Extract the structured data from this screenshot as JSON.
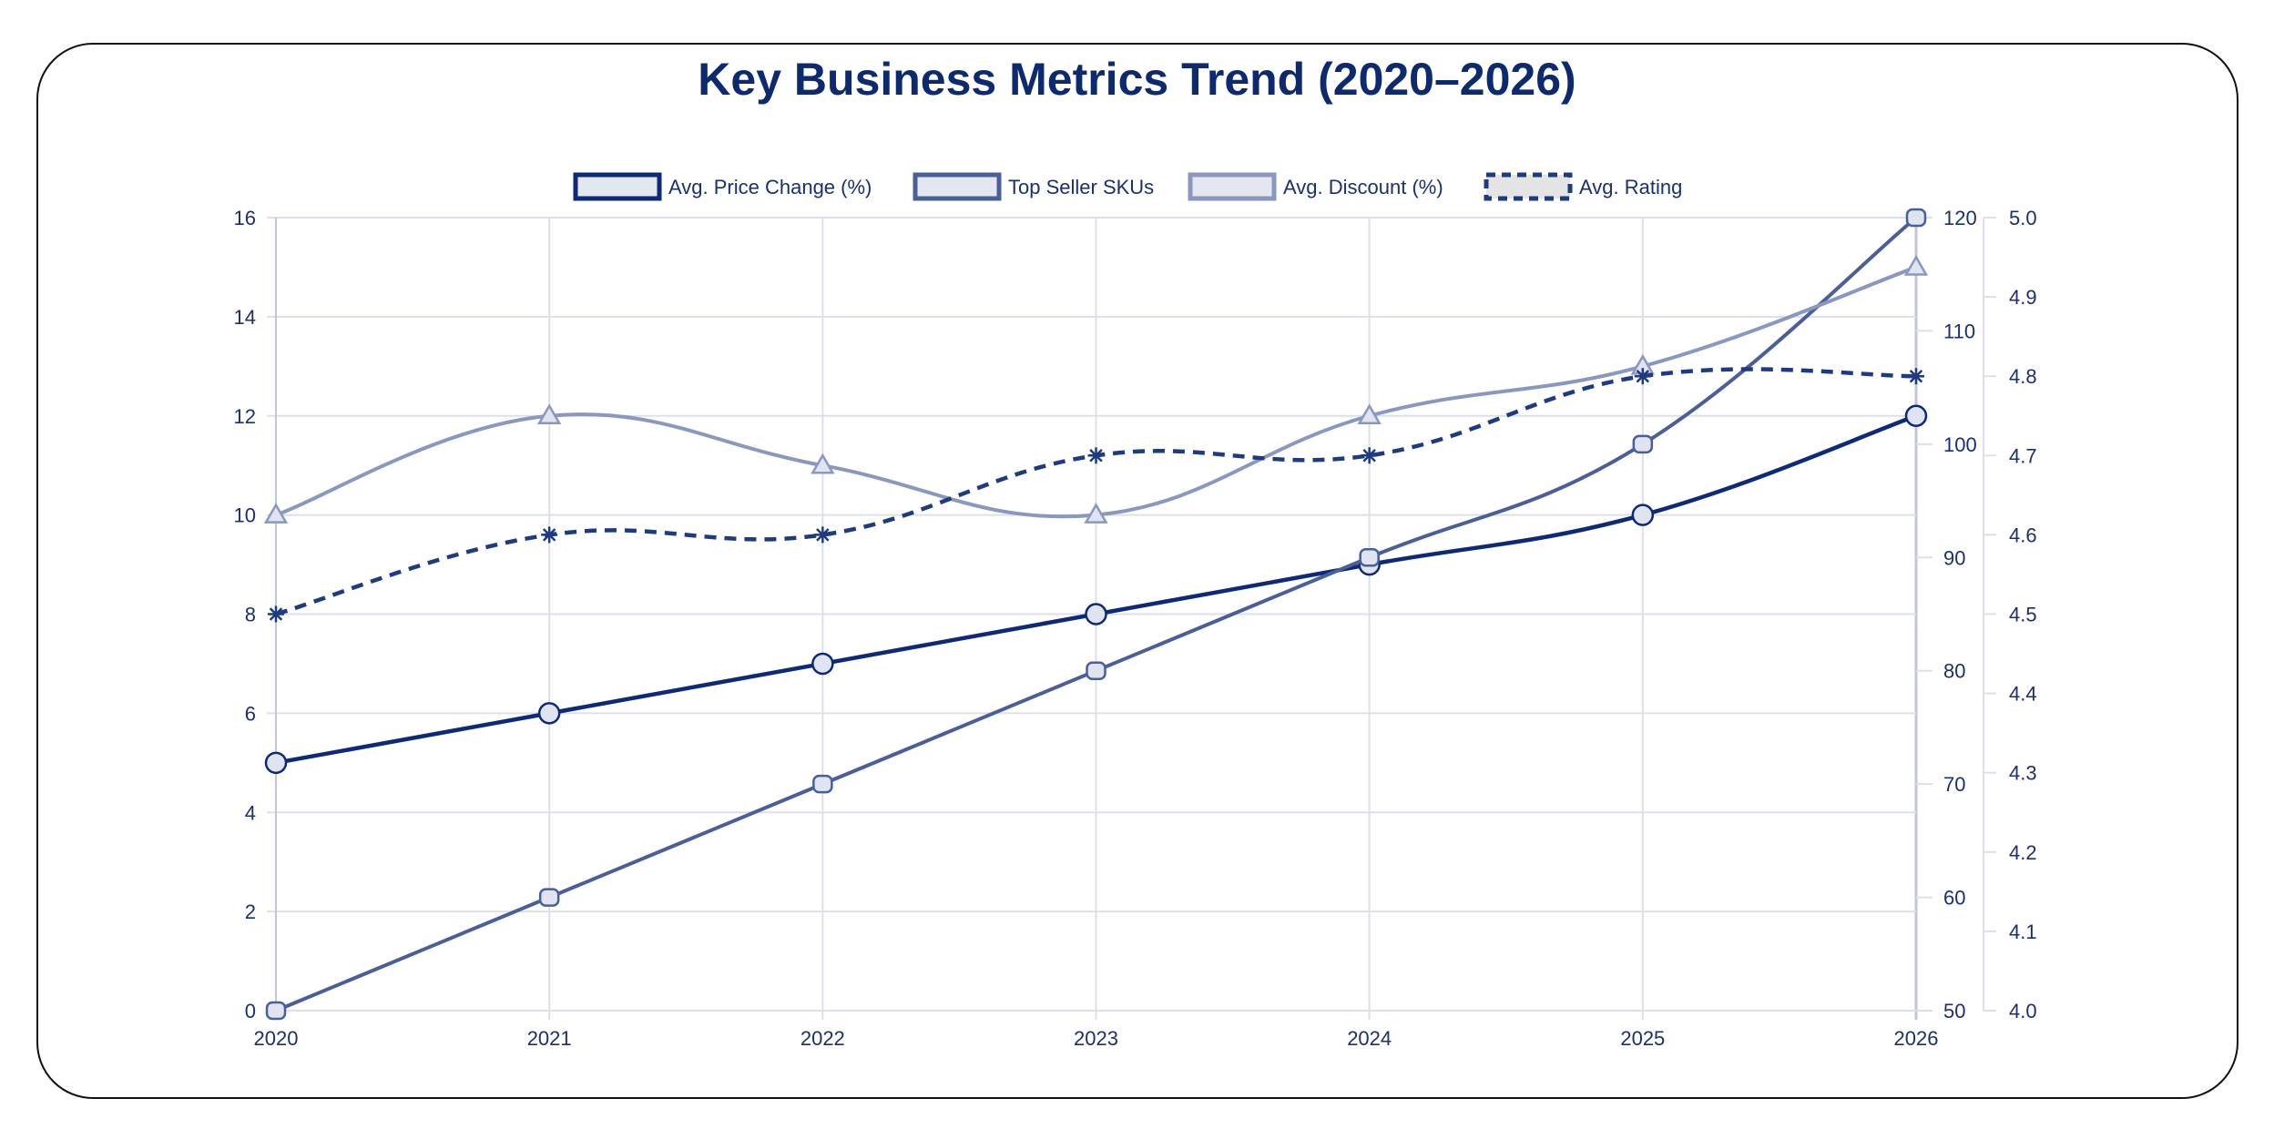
{
  "chart_data": {
    "type": "line",
    "title": "Key Business Metrics Trend (2020–2026)",
    "categories": [
      "2020",
      "2021",
      "2022",
      "2023",
      "2024",
      "2025",
      "2026"
    ],
    "axes": {
      "y_left": {
        "range": [
          0,
          16
        ],
        "ticks": [
          0,
          2,
          4,
          6,
          8,
          10,
          12,
          14,
          16
        ]
      },
      "y_right1": {
        "range": [
          50,
          120
        ],
        "ticks": [
          50,
          60,
          70,
          80,
          90,
          100,
          110,
          120
        ]
      },
      "y_right2": {
        "range": [
          4.0,
          5.0
        ],
        "ticks": [
          "4.0",
          "4.1",
          "4.2",
          "4.3",
          "4.4",
          "4.5",
          "4.6",
          "4.7",
          "4.8",
          "4.9",
          "5.0"
        ]
      }
    },
    "grid": true,
    "legend_placement": "top",
    "series": [
      {
        "name": "Avg. Price Change (%)",
        "axis": "y_left",
        "values": [
          5,
          6,
          7,
          8,
          9,
          10,
          12
        ],
        "color": "#0d2a7a",
        "marker": "circle",
        "dashed": false
      },
      {
        "name": "Top Seller SKUs",
        "axis": "y_right1",
        "values": [
          50,
          60,
          70,
          80,
          90,
          100,
          120
        ],
        "color": "#4a5f9a",
        "marker": "rounded-square",
        "dashed": false
      },
      {
        "name": "Avg. Discount (%)",
        "axis": "y_left",
        "values": [
          10,
          12,
          11,
          10,
          12,
          13,
          15
        ],
        "color": "#8a97c0",
        "marker": "triangle",
        "dashed": false
      },
      {
        "name": "Avg. Rating",
        "axis": "y_right2",
        "values": [
          4.5,
          4.6,
          4.6,
          4.7,
          4.7,
          4.8,
          4.8
        ],
        "color": "#1e3a80",
        "marker": "star",
        "dashed": true
      }
    ]
  }
}
